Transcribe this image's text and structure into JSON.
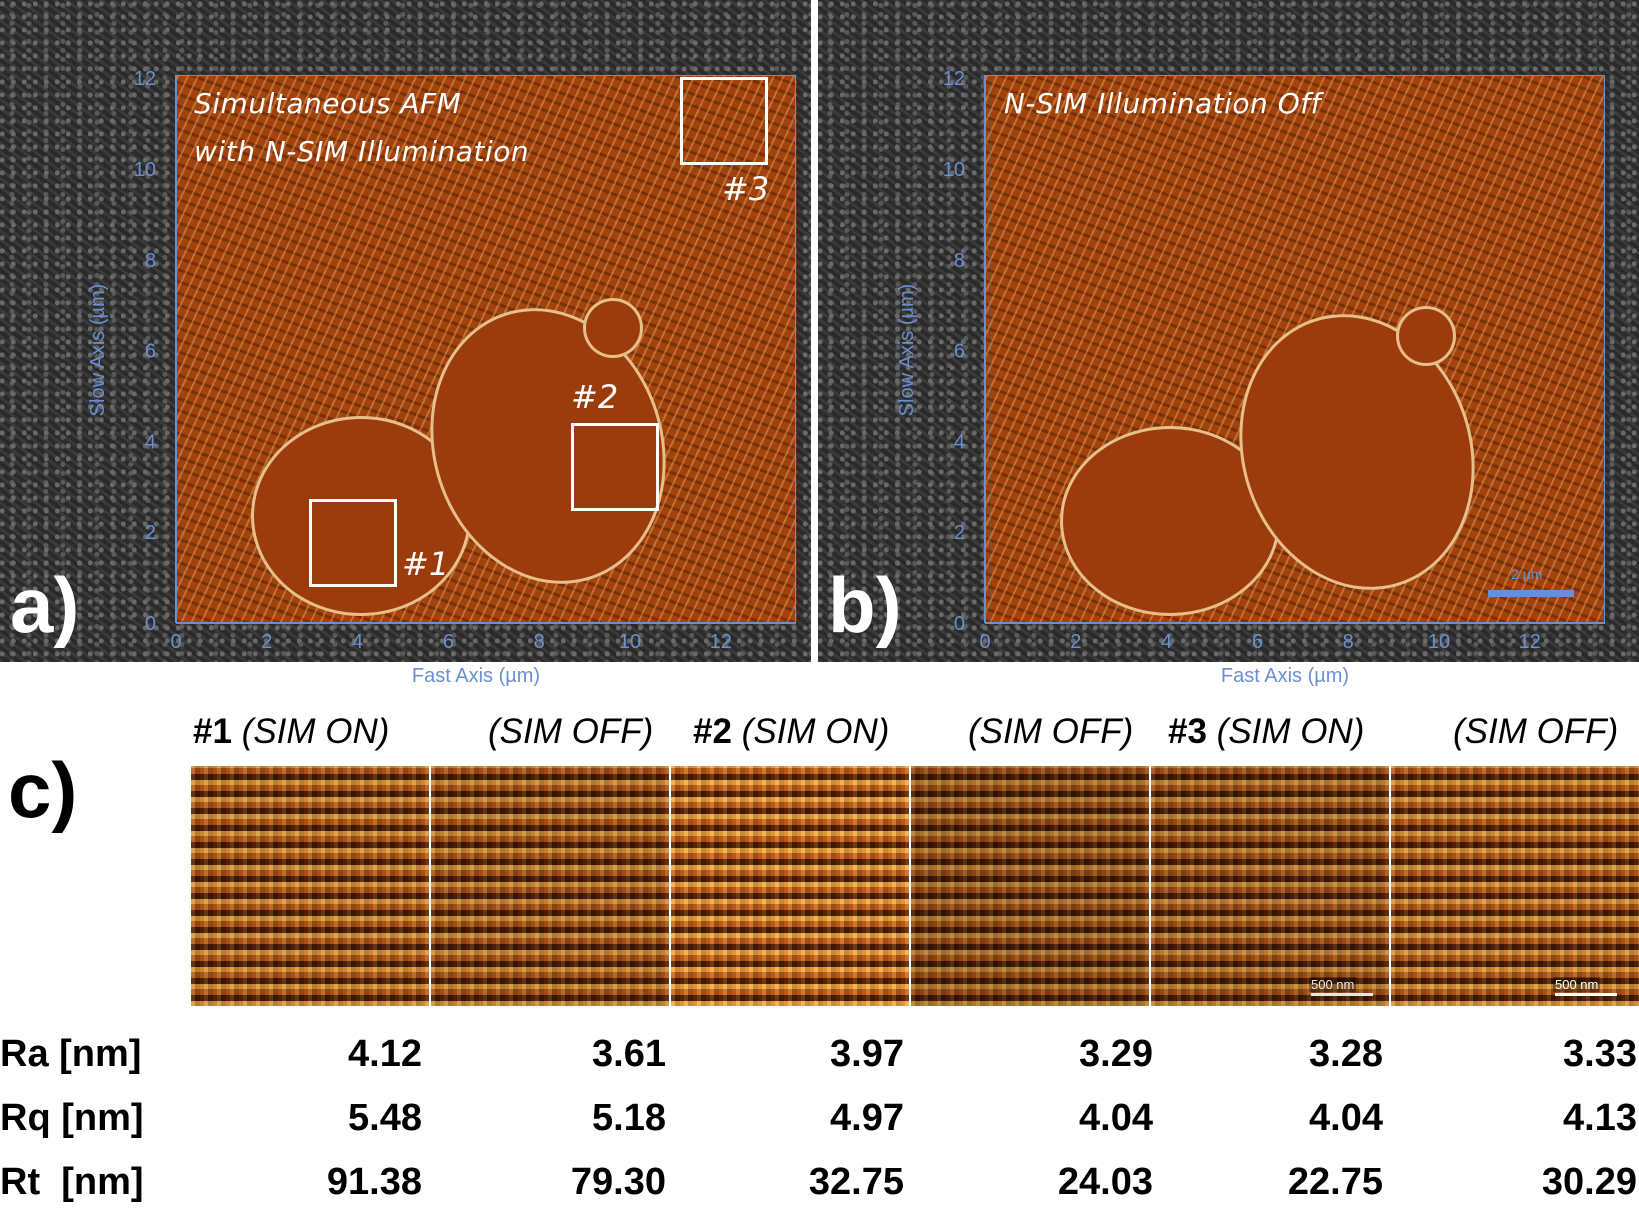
{
  "panel_a": {
    "title_line1": "Simultaneous AFM",
    "title_line2": "with N-SIM Illumination",
    "letter": "a)",
    "roi_labels": [
      "#1",
      "#2",
      "#3"
    ]
  },
  "panel_b": {
    "title": "N-SIM Illumination Off",
    "letter": "b)",
    "scalebar_label": "2 µm"
  },
  "axes": {
    "x_label": "Fast Axis  (µm)",
    "y_label": "Slow Axis (µm)",
    "x_ticks": [
      "0",
      "2",
      "4",
      "6",
      "8",
      "10",
      "12"
    ],
    "y_ticks": [
      "0",
      "2",
      "4",
      "6",
      "8",
      "10",
      "12"
    ]
  },
  "panel_c": {
    "letter": "c)",
    "headers": [
      {
        "roi": "#1",
        "mode": "(SIM ON)"
      },
      {
        "roi": "",
        "mode": "(SIM OFF)"
      },
      {
        "roi": "#2",
        "mode": "(SIM ON)"
      },
      {
        "roi": "",
        "mode": "(SIM OFF)"
      },
      {
        "roi": "#3",
        "mode": "(SIM ON)"
      },
      {
        "roi": "",
        "mode": "(SIM OFF)"
      }
    ],
    "tile_scale_label": "500 nm",
    "table": {
      "rows": [
        {
          "label": "Ra [nm]",
          "values": [
            "4.12",
            "3.61",
            "3.97",
            "3.29",
            "3.28",
            "3.33"
          ]
        },
        {
          "label": "Rq [nm]",
          "values": [
            "5.48",
            "5.18",
            "4.97",
            "4.04",
            "4.04",
            "4.13"
          ]
        },
        {
          "label": "Rt  [nm]",
          "values": [
            "91.38",
            "79.30",
            "32.75",
            "24.03",
            "22.75",
            "30.29"
          ]
        }
      ]
    }
  },
  "colors": {
    "axis": "#6c8fd0",
    "afm_base": "#a2420c",
    "background_grey": "#303030"
  }
}
